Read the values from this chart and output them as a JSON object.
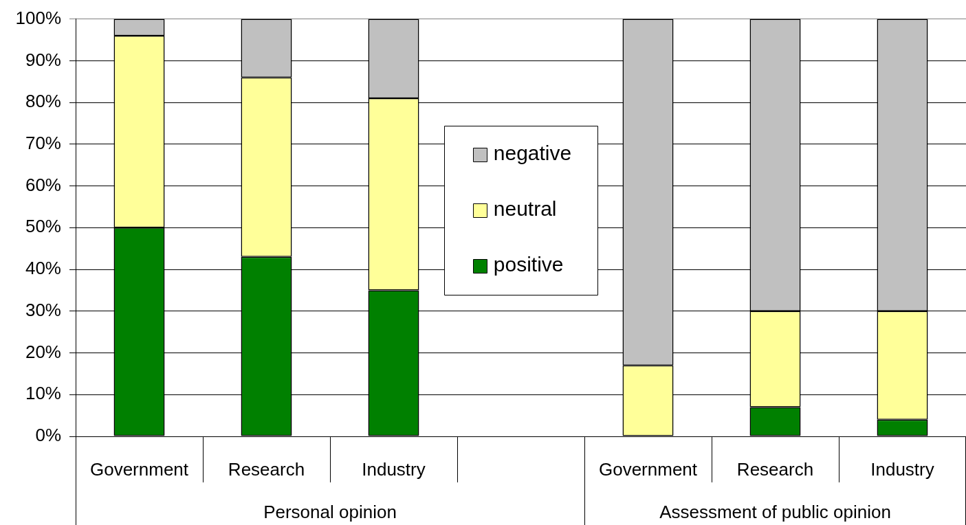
{
  "chart_data": {
    "type": "bar",
    "stacked": true,
    "categories": [
      "Government",
      "Research",
      "Industry",
      null,
      "Government",
      "Research",
      "Industry"
    ],
    "series": [
      {
        "name": "positive",
        "color": "#008000",
        "values": [
          50,
          43,
          35,
          null,
          0,
          7,
          4
        ]
      },
      {
        "name": "neutral",
        "color": "#ffff99",
        "values": [
          46,
          43,
          46,
          null,
          17,
          23,
          26
        ]
      },
      {
        "name": "negative",
        "color": "#c0c0c0",
        "values": [
          4,
          14,
          19,
          null,
          83,
          70,
          70
        ]
      }
    ],
    "ylim": [
      0,
      100
    ],
    "yticks": [
      {
        "value": 0,
        "label": "0%"
      },
      {
        "value": 10,
        "label": "10%"
      },
      {
        "value": 20,
        "label": "20%"
      },
      {
        "value": 30,
        "label": "30%"
      },
      {
        "value": 40,
        "label": "40%"
      },
      {
        "value": 50,
        "label": "50%"
      },
      {
        "value": 60,
        "label": "60%"
      },
      {
        "value": 70,
        "label": "70%"
      },
      {
        "value": 80,
        "label": "80%"
      },
      {
        "value": 90,
        "label": "90%"
      },
      {
        "value": 100,
        "label": "100%"
      }
    ],
    "grid": "y",
    "legend": "center",
    "annotations": [
      "Personal opinion",
      "Assessment of public opinion"
    ]
  }
}
